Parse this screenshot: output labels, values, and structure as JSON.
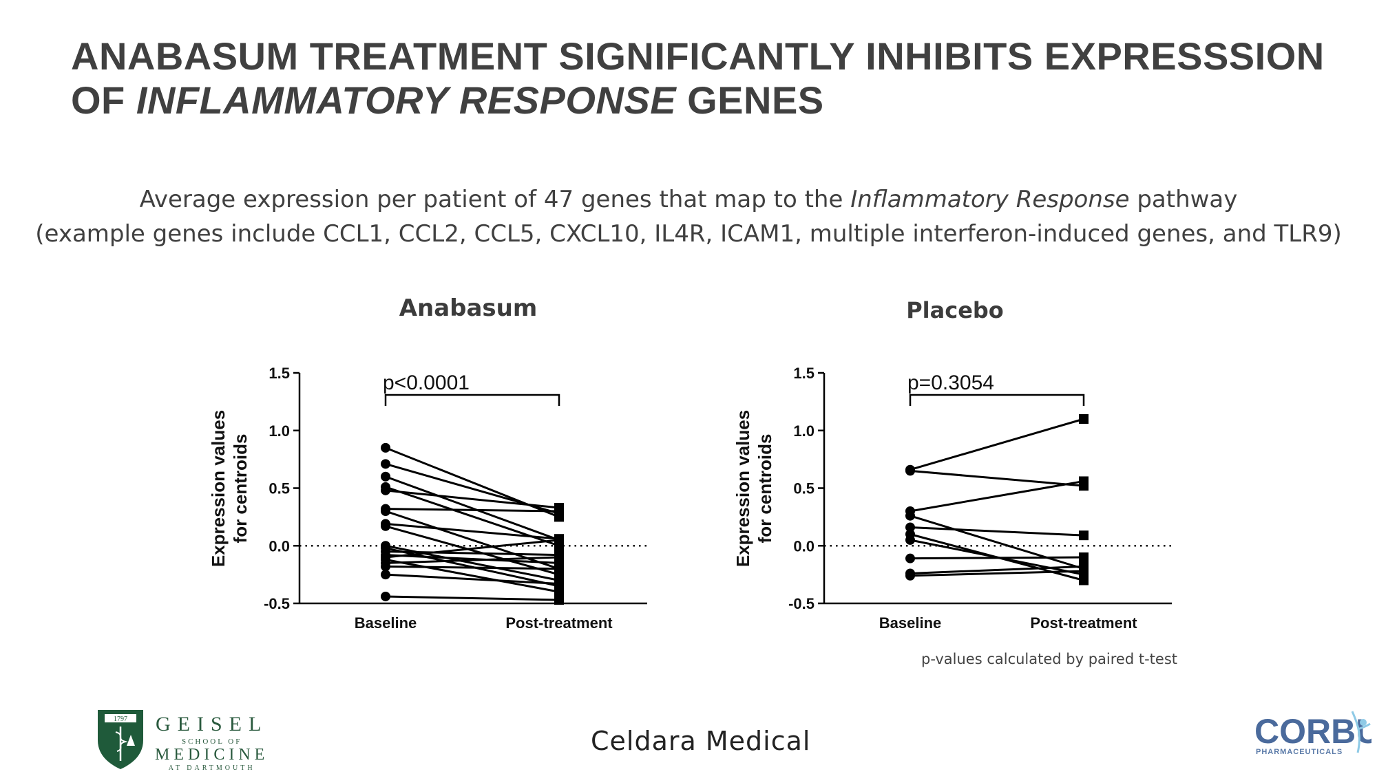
{
  "slide": {
    "title_line1": "ANABASUM TREATMENT SIGNIFICANTLY INHIBITS EXPRESSSION",
    "title_line2_a": "OF ",
    "title_line2_italic": "INFLAMMATORY RESPONSE",
    "title_line2_b": " GENES",
    "subtitle_line1_a": "Average expression per patient of 47 genes that map to the ",
    "subtitle_line1_italic": "Inflammatory Response",
    "subtitle_line1_b": " pathway",
    "subtitle_line2": "(example genes include CCL1, CCL2, CCL5, CXCL10, IL4R, ICAM1, multiple interferon-induced genes, and TLR9)",
    "footnote": "p-values calculated by paired t-test",
    "footer_company": "Celdara Medical",
    "logo_geisel": {
      "year": "1797",
      "line1": "GEISEL",
      "line2": "SCHOOL OF",
      "line3": "MEDICINE",
      "line4": "AT DARTMOUTH"
    },
    "logo_corbus": {
      "word": "CORBUS",
      "sub": "PHARMACEUTICALS",
      "accent": "#8ecae6"
    }
  },
  "chart_data": [
    {
      "type": "line",
      "title": "Anabasum",
      "ylabel_line1": "Expression values",
      "ylabel_line2": "for centroids",
      "xlabel": "",
      "categories": [
        "Baseline",
        "Post-treatment"
      ],
      "ylim": [
        -0.5,
        1.5
      ],
      "yticks": [
        "1.5",
        "1.0",
        "0.5",
        "0.0",
        "-0.5"
      ],
      "reference_line": 0.0,
      "p_value": "p<0.0001",
      "paired_values": [
        [
          0.85,
          0.25
        ],
        [
          0.71,
          0.28
        ],
        [
          0.6,
          0.05
        ],
        [
          0.51,
          0.0
        ],
        [
          0.48,
          0.33
        ],
        [
          0.32,
          0.3
        ],
        [
          0.3,
          -0.2
        ],
        [
          0.19,
          0.06
        ],
        [
          0.17,
          -0.25
        ],
        [
          0.0,
          -0.3
        ],
        [
          -0.02,
          -0.35
        ],
        [
          -0.05,
          -0.08
        ],
        [
          -0.08,
          -0.15
        ],
        [
          -0.1,
          0.05
        ],
        [
          -0.12,
          -0.4
        ],
        [
          -0.15,
          -0.1
        ],
        [
          -0.18,
          -0.2
        ],
        [
          -0.25,
          -0.33
        ],
        [
          -0.44,
          -0.47
        ]
      ],
      "colors": {
        "series": "#000000"
      }
    },
    {
      "type": "line",
      "title": "Placebo",
      "ylabel_line1": "Expression values",
      "ylabel_line2": "for centroids",
      "xlabel": "",
      "categories": [
        "Baseline",
        "Post-treatment"
      ],
      "ylim": [
        -0.5,
        1.5
      ],
      "yticks": [
        "1.5",
        "1.0",
        "0.5",
        "0.0",
        "-0.5"
      ],
      "reference_line": 0.0,
      "p_value": "p=0.3054",
      "paired_values": [
        [
          0.66,
          1.1
        ],
        [
          0.65,
          0.52
        ],
        [
          0.3,
          0.56
        ],
        [
          0.26,
          -0.2
        ],
        [
          0.16,
          0.09
        ],
        [
          0.1,
          -0.3
        ],
        [
          0.05,
          -0.25
        ],
        [
          -0.11,
          -0.1
        ],
        [
          -0.24,
          -0.18
        ],
        [
          -0.26,
          -0.22
        ]
      ],
      "colors": {
        "series": "#000000"
      }
    }
  ]
}
